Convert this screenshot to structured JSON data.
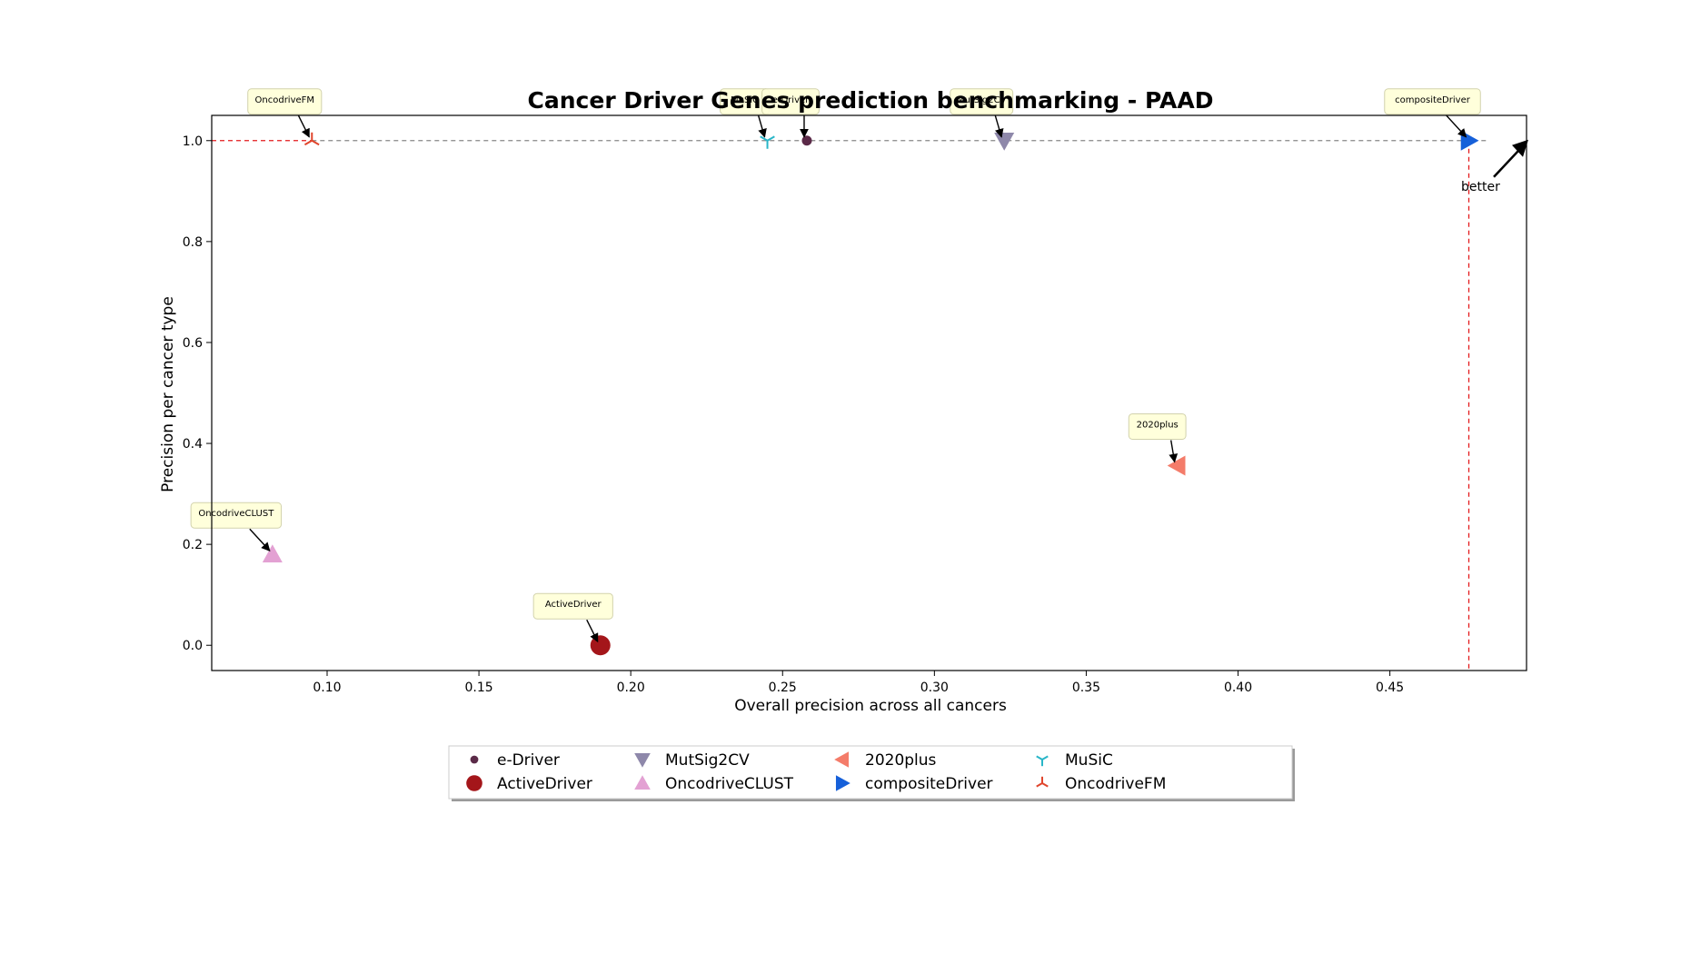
{
  "chart_data": {
    "type": "scatter",
    "title": "Cancer Driver Genes prediction benchmarking - PAAD",
    "xlabel": "Overall precision across all cancers",
    "ylabel": "Precision per cancer type",
    "xlim": [
      0.062,
      0.495
    ],
    "ylim": [
      -0.05,
      1.05
    ],
    "x_ticks": [
      0.1,
      0.15,
      0.2,
      0.25,
      0.3,
      0.35,
      0.4,
      0.45
    ],
    "x_tick_labels": [
      "0.10",
      "0.15",
      "0.20",
      "0.25",
      "0.30",
      "0.35",
      "0.40",
      "0.45"
    ],
    "y_ticks": [
      0.0,
      0.2,
      0.4,
      0.6,
      0.8,
      1.0
    ],
    "y_tick_labels": [
      "0.0",
      "0.2",
      "0.4",
      "0.6",
      "0.8",
      "1.0"
    ],
    "grid": false,
    "legend_position": "bottom-center",
    "legend_columns": 5,
    "series": [
      {
        "name": "e-Driver",
        "x": 0.258,
        "y": 1.0,
        "marker": "circle-small",
        "color": "#5b2a48"
      },
      {
        "name": "ActiveDriver",
        "x": 0.19,
        "y": 0.0,
        "marker": "circle",
        "color": "#a4161a"
      },
      {
        "name": "MutSig2CV",
        "x": 0.323,
        "y": 1.0,
        "marker": "triangle-down",
        "color": "#8e88aa"
      },
      {
        "name": "OncodriveCLUST",
        "x": 0.082,
        "y": 0.18,
        "marker": "triangle-up",
        "color": "#e3a1d3"
      },
      {
        "name": "2020plus",
        "x": 0.38,
        "y": 0.356,
        "marker": "triangle-left",
        "color": "#f47c6a"
      },
      {
        "name": "compositeDriver",
        "x": 0.476,
        "y": 1.0,
        "marker": "triangle-right",
        "color": "#1660d9"
      },
      {
        "name": "MuSiC",
        "x": 0.245,
        "y": 1.0,
        "marker": "tri-down",
        "color": "#29b6c8"
      },
      {
        "name": "OncodriveFM",
        "x": 0.095,
        "y": 1.0,
        "marker": "tri-up",
        "color": "#e0452c"
      }
    ],
    "annotations": [
      {
        "text": "OncodriveFM",
        "target": "OncodriveFM"
      },
      {
        "text": "MuSiC",
        "target": "MuSiC"
      },
      {
        "text": "e-Driver",
        "target": "e-Driver"
      },
      {
        "text": "MutSig2CV",
        "target": "MutSig2CV"
      },
      {
        "text": "compositeDriver",
        "target": "compositeDriver"
      },
      {
        "text": "2020plus",
        "target": "2020plus"
      },
      {
        "text": "OncodriveCLUST",
        "target": "OncodriveCLUST"
      },
      {
        "text": "ActiveDriver",
        "target": "ActiveDriver"
      }
    ],
    "reference_lines": [
      {
        "orientation": "horizontal",
        "y": 1.0,
        "style": "dashed",
        "color": "#888888",
        "segment": "right of OncodriveFM"
      },
      {
        "orientation": "horizontal",
        "y": 1.0,
        "style": "dashed",
        "color": "#e41a1c",
        "segment": "left of OncodriveFM"
      },
      {
        "orientation": "vertical",
        "x": 0.476,
        "style": "dashed",
        "color": "#e41a1c"
      }
    ],
    "better_label": "better"
  }
}
